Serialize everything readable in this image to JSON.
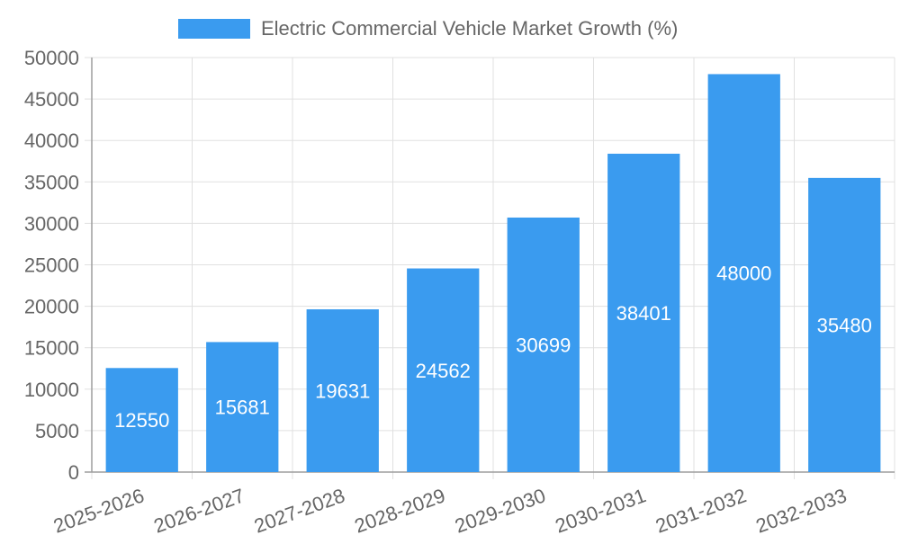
{
  "chart_data": {
    "type": "bar",
    "categories": [
      "2025-2026",
      "2026-2027",
      "2027-2028",
      "2028-2029",
      "2029-2030",
      "2030-2031",
      "2031-2032",
      "2032-2033"
    ],
    "series": [
      {
        "name": "Electric Commercial Vehicle Market Growth (%)",
        "values": [
          12550,
          15681,
          19631,
          24562,
          30699,
          38401,
          48000,
          35480
        ],
        "color": "#3a9bef"
      }
    ],
    "ylim": [
      0,
      50000
    ],
    "yticks": [
      "0",
      "5000",
      "10000",
      "15000",
      "20000",
      "25000",
      "30000",
      "35000",
      "40000",
      "45000",
      "50000"
    ],
    "grid": true,
    "legend_position": "top",
    "data_labels": "inside-center",
    "colors": {
      "bar": "#3a9bef",
      "grid": "#e0e0e0",
      "axis": "#9e9e9e",
      "text": "#666666",
      "data_label": "#ffffff"
    }
  }
}
